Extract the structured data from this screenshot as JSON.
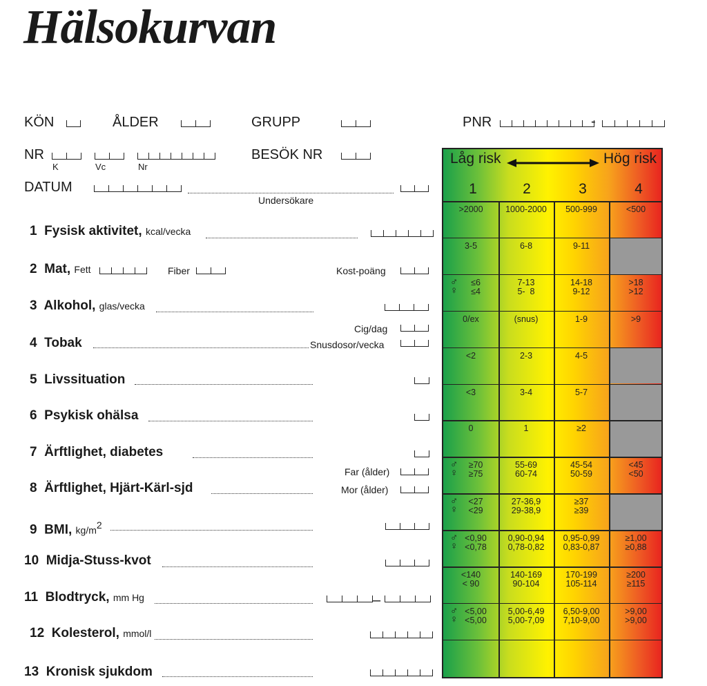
{
  "title": "Hälsokurvan",
  "header": {
    "kon": "KÖN",
    "alder": "ÅLDER",
    "grupp": "GRUPP",
    "pnr": "PNR",
    "nr": "NR",
    "nr_k": "K",
    "nr_vc": "Vc",
    "nr_nr": "Nr",
    "besok": "BESÖK NR",
    "datum": "DATUM",
    "undersokare": "Undersökare",
    "pnr_dash": "-"
  },
  "rows": [
    {
      "num": "1",
      "label": "Fysisk aktivitet,",
      "unit": "kcal/vecka"
    },
    {
      "num": "2",
      "label": "Mat,",
      "unit": "Fett",
      "fiber": "Fiber",
      "kost": "Kost-poäng"
    },
    {
      "num": "3",
      "label": "Alkohol,",
      "unit": "glas/vecka"
    },
    {
      "num": "4",
      "label": "Tobak",
      "cig": "Cig/dag",
      "snus": "Snusdosor/vecka"
    },
    {
      "num": "5",
      "label": "Livssituation"
    },
    {
      "num": "6",
      "label": "Psykisk ohälsa"
    },
    {
      "num": "7",
      "label": "Ärftlighet, diabetes"
    },
    {
      "num": "8",
      "label": "Ärftlighet, Hjärt-Kärl-sjd",
      "far": "Far (ålder)",
      "mor": "Mor (ålder)"
    },
    {
      "num": "9",
      "label": "BMI,",
      "unit": "kg/m",
      "sup": "2"
    },
    {
      "num": "10",
      "label": "Midja-Stuss-kvot"
    },
    {
      "num": "11",
      "label": "Blodtryck,",
      "unit": "mm Hg",
      "dash": "–"
    },
    {
      "num": "12",
      "label": "Kolesterol,",
      "unit": "mmol/l"
    },
    {
      "num": "13",
      "label": "Kronisk sjukdom"
    }
  ],
  "grid": {
    "low": "Låg risk",
    "high": "Hög risk",
    "cols": [
      "1",
      "2",
      "3",
      "4"
    ],
    "male": "♂",
    "female": "♀",
    "cells": [
      [
        ">2000",
        "1000-2000",
        "500-999",
        "<500"
      ],
      [
        "3-5",
        "6-8",
        "9-11",
        ""
      ],
      [
        "≤6\n≤4",
        "7-13\n5-  8",
        "14-18\n9-12",
        ">18\n>12"
      ],
      [
        "0/ex",
        "(snus)",
        "1-9",
        ">9"
      ],
      [
        "<2",
        "2-3",
        "4-5",
        ""
      ],
      [
        "<3",
        "3-4",
        "5-7",
        ""
      ],
      [
        "0",
        "1",
        "≥2",
        ""
      ],
      [
        "≥70\n≥75",
        "55-69\n60-74",
        "45-54\n50-59",
        "<45\n<50"
      ],
      [
        "<27\n<29",
        "27-36,9\n29-38,9",
        "≥37\n≥39",
        ""
      ],
      [
        "<0,90\n<0,78",
        "0,90-0,94\n0,78-0,82",
        "0,95-0,99\n0,83-0,87",
        "≥1,00\n≥0,88"
      ],
      [
        "<140\n< 90",
        "140-169\n90-104",
        "170-199\n105-114",
        "≥200\n≥115"
      ],
      [
        "<5,00\n<5,00",
        "5,00-6,49\n5,00-7,09",
        "6,50-9,00\n7,10-9,00",
        ">9,00\n>9,00"
      ],
      [
        "",
        "",
        "",
        ""
      ]
    ],
    "grey_cells": [
      "1-3",
      "4-3",
      "5-3",
      "6-3",
      "8-3"
    ],
    "colors": {
      "green": "#1aa04a",
      "yellow": "#fff200",
      "orange": "#f7a21c",
      "red": "#e8251f",
      "grey": "#999999"
    }
  }
}
